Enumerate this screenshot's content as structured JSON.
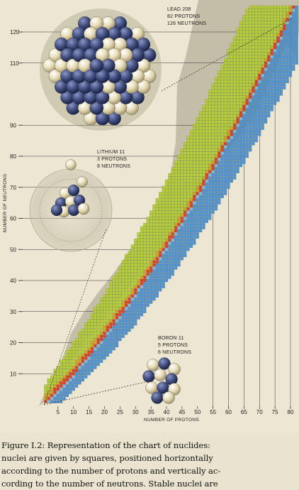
{
  "chart_data": {
    "type": "heatmap",
    "xlabel": "NUMBER OF PROTONS",
    "ylabel": "NUMBER OF NEUTRONS",
    "x_ticks": [
      5,
      10,
      15,
      20,
      25,
      30,
      35,
      40,
      45,
      50,
      55,
      60,
      65,
      70,
      75,
      80
    ],
    "y_ticks": [
      10,
      20,
      30,
      40,
      50,
      60,
      70,
      80,
      90,
      110,
      120
    ],
    "xlim": [
      0,
      82
    ],
    "ylim": [
      0,
      126
    ],
    "bands": [
      "stable nuclei (red)",
      "neutron-rich nuclei (green/yellow)",
      "proton-rich nuclei (blue)"
    ],
    "annotations": [
      {
        "name": "LEAD 208",
        "lines": [
          "LEAD 208",
          "82 PROTONS",
          "126 NEUTRONS"
        ],
        "protons": 82,
        "neutrons": 126
      },
      {
        "name": "LITHIUM 11",
        "lines": [
          "LITHIUM 11",
          "3 PROTONS",
          "8 NEUTRONS"
        ],
        "protons": 3,
        "neutrons": 8
      },
      {
        "name": "BORON 11",
        "lines": [
          "BORON 11",
          "5 PROTONS",
          "6 NEUTRONS"
        ],
        "protons": 5,
        "neutrons": 6
      }
    ]
  },
  "caption": {
    "line1": "Figure I.2:  Representation of the chart of nuclides:",
    "line2": "nuclei are given by squares, positioned horizontally",
    "line3": "according to the number of protons and vertically ac-",
    "line4": "cording to the number of neutrons. Stable nuclei are"
  },
  "colors": {
    "stable": "#d9412a",
    "neutron_rich": "#b7cf3a",
    "proton_rich": "#4f92d6",
    "drip_region": "#bdb5a1",
    "neutron_ball": "#3d4a7a",
    "proton_ball": "#e6dcb6"
  }
}
